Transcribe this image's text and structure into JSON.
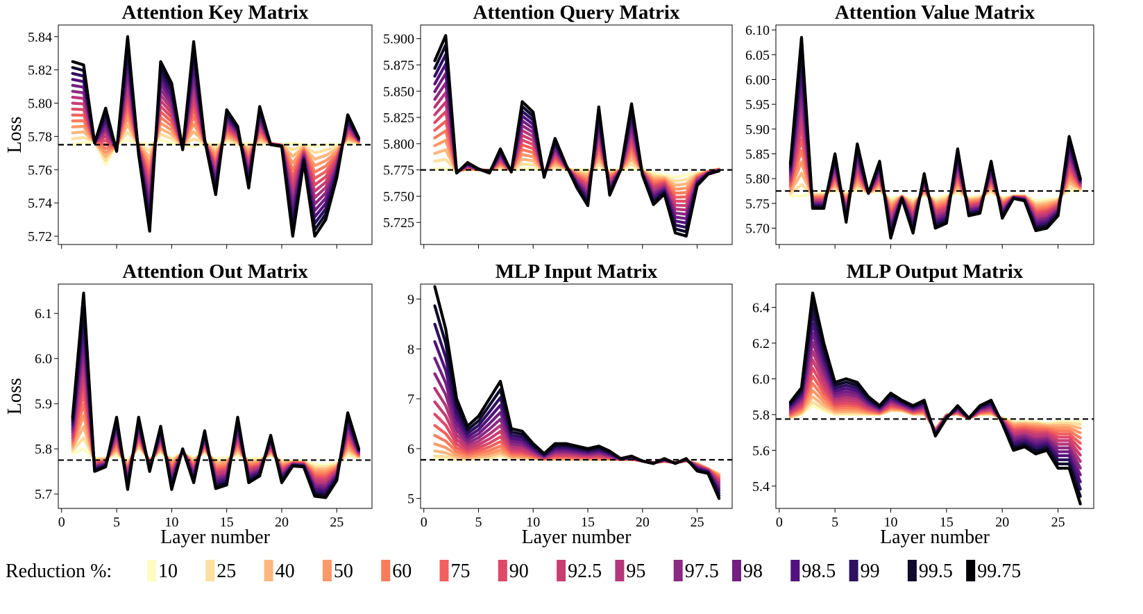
{
  "legend": {
    "label": "Reduction %:",
    "items": [
      {
        "label": "10",
        "color": "#fcfdbf"
      },
      {
        "label": "25",
        "color": "#fedf9f"
      },
      {
        "label": "40",
        "color": "#feb77e"
      },
      {
        "label": "50",
        "color": "#fd9869"
      },
      {
        "label": "60",
        "color": "#f97c5d"
      },
      {
        "label": "75",
        "color": "#f1605d"
      },
      {
        "label": "90",
        "color": "#de4968"
      },
      {
        "label": "92.5",
        "color": "#c83e73"
      },
      {
        "label": "95",
        "color": "#b5367a"
      },
      {
        "label": "97.5",
        "color": "#8c2981"
      },
      {
        "label": "98",
        "color": "#721f81"
      },
      {
        "label": "98.5",
        "color": "#51127c"
      },
      {
        "label": "99",
        "color": "#2d1160"
      },
      {
        "label": "99.5",
        "color": "#100b2d"
      },
      {
        "label": "99.75",
        "color": "#000004"
      }
    ]
  },
  "chart_data": [
    {
      "type": "line",
      "title": "Attention Key Matrix",
      "xlabel": "",
      "ylabel": "Loss",
      "xlim": [
        -0.3,
        28.2
      ],
      "ylim": [
        5.715,
        5.847
      ],
      "xticks": [],
      "yticks": [
        5.72,
        5.74,
        5.76,
        5.78,
        5.8,
        5.82,
        5.84
      ],
      "ytick_labels": [
        "5.72",
        "5.74",
        "5.76",
        "5.78",
        "5.80",
        "5.82",
        "5.84"
      ],
      "baseline": 5.775,
      "x": [
        1,
        2,
        3,
        4,
        5,
        6,
        7,
        8,
        9,
        10,
        11,
        12,
        13,
        14,
        15,
        16,
        17,
        18,
        19,
        20,
        21,
        22,
        23,
        24,
        25,
        26,
        27
      ],
      "base": [
        5.775,
        5.776,
        5.777,
        5.763,
        5.775,
        5.778,
        5.776,
        5.775,
        5.778,
        5.776,
        5.775,
        5.774,
        5.776,
        5.775,
        5.777,
        5.775,
        5.776,
        5.775,
        5.776,
        5.775,
        5.776,
        5.775,
        5.774,
        5.775,
        5.775,
        5.776,
        5.776
      ],
      "top": [
        5.825,
        5.823,
        5.776,
        5.797,
        5.771,
        5.84,
        5.769,
        5.723,
        5.825,
        5.812,
        5.772,
        5.837,
        5.778,
        5.745,
        5.796,
        5.786,
        5.749,
        5.798,
        5.775,
        5.774,
        5.72,
        5.765,
        5.72,
        5.73,
        5.755,
        5.793,
        5.779
      ],
      "curve": 1.0
    },
    {
      "type": "line",
      "title": "Attention Query Matrix",
      "xlabel": "",
      "ylabel": "",
      "xlim": [
        -0.3,
        28.2
      ],
      "ylim": [
        5.704,
        5.913
      ],
      "xticks": [],
      "yticks": [
        5.725,
        5.75,
        5.775,
        5.8,
        5.825,
        5.85,
        5.875,
        5.9
      ],
      "ytick_labels": [
        "5.725",
        "5.750",
        "5.775",
        "5.800",
        "5.825",
        "5.850",
        "5.875",
        "5.900"
      ],
      "baseline": 5.775,
      "x": [
        1,
        2,
        3,
        4,
        5,
        6,
        7,
        8,
        9,
        10,
        11,
        12,
        13,
        14,
        15,
        16,
        17,
        18,
        19,
        20,
        21,
        22,
        23,
        24,
        25,
        26,
        27
      ],
      "base": [
        5.776,
        5.776,
        5.774,
        5.775,
        5.775,
        5.775,
        5.776,
        5.775,
        5.776,
        5.776,
        5.775,
        5.776,
        5.776,
        5.775,
        5.775,
        5.776,
        5.775,
        5.775,
        5.776,
        5.775,
        5.772,
        5.77,
        5.768,
        5.77,
        5.772,
        5.774,
        5.776
      ],
      "top": [
        5.879,
        5.903,
        5.772,
        5.782,
        5.776,
        5.772,
        5.795,
        5.773,
        5.84,
        5.83,
        5.768,
        5.805,
        5.78,
        5.758,
        5.741,
        5.835,
        5.751,
        5.775,
        5.838,
        5.77,
        5.742,
        5.752,
        5.715,
        5.712,
        5.76,
        5.771,
        5.774
      ],
      "curve": 1.0
    },
    {
      "type": "line",
      "title": "Attention Value Matrix",
      "xlabel": "",
      "ylabel": "",
      "xlim": [
        -0.3,
        28.2
      ],
      "ylim": [
        5.667,
        6.11
      ],
      "xticks": [],
      "yticks": [
        5.7,
        5.75,
        5.8,
        5.85,
        5.9,
        5.95,
        6.0,
        6.05,
        6.1
      ],
      "ytick_labels": [
        "5.70",
        "5.75",
        "5.80",
        "5.85",
        "5.90",
        "5.95",
        "6.00",
        "6.05",
        "6.10"
      ],
      "baseline": 5.775,
      "x": [
        1,
        2,
        3,
        4,
        5,
        6,
        7,
        8,
        9,
        10,
        11,
        12,
        13,
        14,
        15,
        16,
        17,
        18,
        19,
        20,
        21,
        22,
        23,
        24,
        25,
        26,
        27
      ],
      "base": [
        5.765,
        5.765,
        5.77,
        5.77,
        5.775,
        5.772,
        5.776,
        5.772,
        5.774,
        5.76,
        5.765,
        5.758,
        5.766,
        5.76,
        5.766,
        5.77,
        5.762,
        5.765,
        5.77,
        5.762,
        5.765,
        5.766,
        5.755,
        5.758,
        5.76,
        5.775,
        5.776
      ],
      "top": [
        5.83,
        6.085,
        5.74,
        5.74,
        5.85,
        5.712,
        5.87,
        5.77,
        5.835,
        5.68,
        5.76,
        5.69,
        5.81,
        5.7,
        5.71,
        5.86,
        5.725,
        5.73,
        5.835,
        5.72,
        5.76,
        5.755,
        5.695,
        5.7,
        5.725,
        5.885,
        5.8
      ],
      "curve": 1.0
    },
    {
      "type": "line",
      "title": "Attention Out Matrix",
      "xlabel": "Layer number",
      "ylabel": "Loss",
      "xlim": [
        -0.3,
        28.2
      ],
      "ylim": [
        5.668,
        6.165
      ],
      "xticks": [
        0,
        5,
        10,
        15,
        20,
        25
      ],
      "yticks": [
        5.7,
        5.8,
        5.9,
        6.0,
        6.1
      ],
      "ytick_labels": [
        "5.7",
        "5.8",
        "5.9",
        "6.0",
        "6.1"
      ],
      "baseline": 5.775,
      "x": [
        1,
        2,
        3,
        4,
        5,
        6,
        7,
        8,
        9,
        10,
        11,
        12,
        13,
        14,
        15,
        16,
        17,
        18,
        19,
        20,
        21,
        22,
        23,
        24,
        25,
        26,
        27
      ],
      "base": [
        5.79,
        5.8,
        5.778,
        5.78,
        5.785,
        5.775,
        5.8,
        5.778,
        5.79,
        5.78,
        5.79,
        5.78,
        5.79,
        5.778,
        5.78,
        5.785,
        5.778,
        5.778,
        5.785,
        5.775,
        5.772,
        5.772,
        5.765,
        5.765,
        5.768,
        5.785,
        5.78
      ],
      "top": [
        5.87,
        6.145,
        5.75,
        5.76,
        5.87,
        5.71,
        5.87,
        5.75,
        5.85,
        5.71,
        5.8,
        5.725,
        5.84,
        5.712,
        5.72,
        5.87,
        5.725,
        5.74,
        5.83,
        5.725,
        5.762,
        5.76,
        5.695,
        5.692,
        5.73,
        5.88,
        5.8
      ],
      "curve": 1.0
    },
    {
      "type": "line",
      "title": "MLP Input Matrix",
      "xlabel": "Layer number",
      "ylabel": "",
      "xlim": [
        -0.3,
        28.2
      ],
      "ylim": [
        4.8,
        9.3
      ],
      "xticks": [
        0,
        5,
        10,
        15,
        20,
        25
      ],
      "yticks": [
        5,
        6,
        7,
        8,
        9
      ],
      "ytick_labels": [
        "5",
        "6",
        "7",
        "8",
        "9"
      ],
      "baseline": 5.775,
      "x": [
        1,
        2,
        3,
        4,
        5,
        6,
        7,
        8,
        9,
        10,
        11,
        12,
        13,
        14,
        15,
        16,
        17,
        18,
        19,
        20,
        21,
        22,
        23,
        24,
        25,
        26,
        27
      ],
      "base": [
        5.8,
        5.8,
        5.78,
        5.78,
        5.8,
        5.8,
        5.85,
        5.8,
        5.8,
        5.8,
        5.78,
        5.78,
        5.78,
        5.78,
        5.78,
        5.78,
        5.78,
        5.78,
        5.78,
        5.75,
        5.72,
        5.74,
        5.72,
        5.75,
        5.7,
        5.6,
        5.5
      ],
      "top": [
        9.25,
        8.4,
        7.0,
        6.45,
        6.65,
        7.0,
        7.35,
        6.4,
        6.35,
        6.1,
        5.9,
        6.1,
        6.1,
        6.05,
        6.0,
        6.05,
        5.95,
        5.8,
        5.85,
        5.75,
        5.7,
        5.8,
        5.7,
        5.8,
        5.55,
        5.5,
        5.0
      ],
      "curve": 1.6
    },
    {
      "type": "line",
      "title": "MLP Output Matrix",
      "xlabel": "Layer number",
      "ylabel": "",
      "xlim": [
        -0.3,
        28.2
      ],
      "ylim": [
        5.275,
        6.53
      ],
      "xticks": [
        0,
        5,
        10,
        15,
        20,
        25
      ],
      "yticks": [
        5.4,
        5.6,
        5.8,
        6.0,
        6.2,
        6.4
      ],
      "ytick_labels": [
        "5.4",
        "5.6",
        "5.8",
        "6.0",
        "6.2",
        "6.4"
      ],
      "baseline": 5.775,
      "x": [
        1,
        2,
        3,
        4,
        5,
        6,
        7,
        8,
        9,
        10,
        11,
        12,
        13,
        14,
        15,
        16,
        17,
        18,
        19,
        20,
        21,
        22,
        23,
        24,
        25,
        26,
        27
      ],
      "base": [
        5.78,
        5.8,
        5.85,
        5.82,
        5.8,
        5.8,
        5.8,
        5.8,
        5.8,
        5.82,
        5.82,
        5.8,
        5.8,
        5.72,
        5.8,
        5.8,
        5.78,
        5.8,
        5.8,
        5.78,
        5.76,
        5.76,
        5.76,
        5.75,
        5.76,
        5.76,
        5.76
      ],
      "top": [
        5.87,
        5.95,
        6.48,
        6.2,
        5.98,
        6.0,
        5.98,
        5.9,
        5.85,
        5.92,
        5.88,
        5.85,
        5.88,
        5.68,
        5.78,
        5.85,
        5.78,
        5.85,
        5.88,
        5.75,
        5.6,
        5.62,
        5.58,
        5.6,
        5.5,
        5.5,
        5.3
      ],
      "curve": 1.3
    }
  ]
}
